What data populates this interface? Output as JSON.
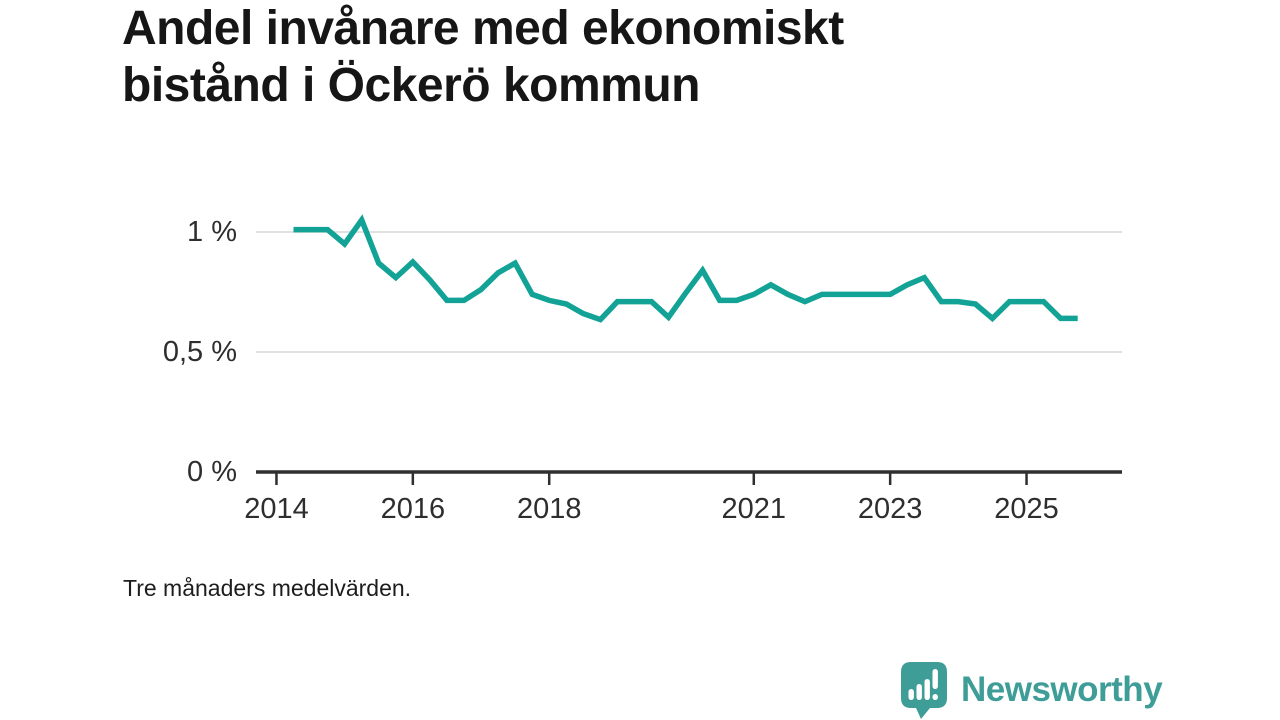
{
  "header": {
    "title": "Andel invånare med ekonomiskt\nbistånd i Öckerö kommun"
  },
  "footnote": "Tre månaders medelvärden.",
  "branding": {
    "name": "Newsworthy",
    "icon": "newsworthy-speech-bubble-bar-chart-icon",
    "color": "#3f9d98"
  },
  "colors": {
    "line": "#12a296",
    "grid": "#e1e1e1",
    "axis": "#2f2f2f",
    "label_text": "#2e2e2e"
  },
  "chart_data": {
    "type": "line",
    "title": "Andel invånare med ekonomiskt bistånd i Öckerö kommun",
    "note": "Tre månaders medelvärden.",
    "unit": "%",
    "grid": "horizontal-only",
    "legend": "none",
    "x_domain": [
      2013.7,
      2026.4
    ],
    "y_domain": [
      0,
      1.08
    ],
    "x_start": 2014.25,
    "x_step": 0.25,
    "series": [
      {
        "name": "Andel invånare med ekonomiskt bistånd",
        "values": [
          1.01,
          1.01,
          1.01,
          0.95,
          1.05,
          0.87,
          0.81,
          0.875,
          0.8,
          0.715,
          0.715,
          0.76,
          0.83,
          0.87,
          0.74,
          0.715,
          0.7,
          0.66,
          0.635,
          0.71,
          0.71,
          0.71,
          0.645,
          0.745,
          0.84,
          0.715,
          0.715,
          0.74,
          0.78,
          0.74,
          0.71,
          0.74,
          0.74,
          0.74,
          0.74,
          0.74,
          0.78,
          0.81,
          0.71,
          0.71,
          0.7,
          0.64,
          0.71,
          0.71,
          0.71,
          0.64,
          0.64
        ]
      }
    ],
    "grid_values": [
      1,
      0.5
    ],
    "y_ticks": [
      {
        "value": 1,
        "label": "1 %"
      },
      {
        "value": 0.5,
        "label": "0,5 %"
      },
      {
        "value": 0,
        "label": "0 %"
      }
    ],
    "x_ticks": [
      {
        "value": 2014,
        "label": "2014"
      },
      {
        "value": 2016,
        "label": "2016"
      },
      {
        "value": 2018,
        "label": "2018"
      },
      {
        "value": 2021,
        "label": "2021"
      },
      {
        "value": 2023,
        "label": "2023"
      },
      {
        "value": 2025,
        "label": "2025"
      }
    ]
  }
}
